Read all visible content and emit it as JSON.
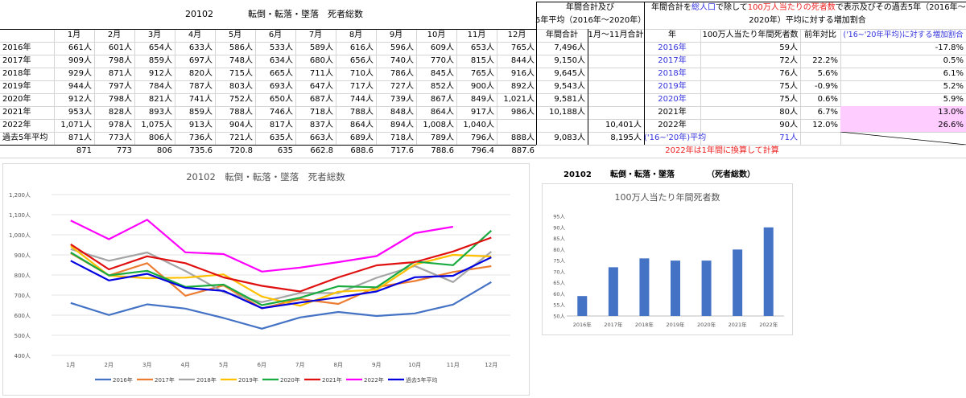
{
  "sheet": {
    "title_code": "20102",
    "title_name": "転倒・転落・墜落　死者総数",
    "note_annual_1": "年間合計及び",
    "note_annual_2": "5年平均（2016年～2020年）",
    "note_right_1a": "年間合計を",
    "note_right_1b": "総人口",
    "note_right_1c": "で除して",
    "note_right_1d": "100万人当たりの死者数",
    "note_right_1e": "で表示及びその過去5年（2016年～",
    "note_right_2": "2020年）平均に対する増加割合",
    "months": [
      "1月",
      "2月",
      "3月",
      "4月",
      "5月",
      "6月",
      "7月",
      "8月",
      "9月",
      "10月",
      "11月",
      "12月"
    ],
    "col_annual": "年間合計",
    "col_jan_nov": "1月～11月合計",
    "col_year": "年",
    "col_per_million": "100万人当たり年間死者数",
    "col_yoy": "前年対比",
    "col_increase": "('16~'20年平均)に対する増加割合",
    "rows": [
      {
        "label": "2016年",
        "m": [
          "661人",
          "601人",
          "654人",
          "633人",
          "586人",
          "533人",
          "589人",
          "616人",
          "596人",
          "609人",
          "653人",
          "765人"
        ],
        "annual": "7,496人",
        "jn": "",
        "year": "2016年",
        "pm": "59人",
        "yoy": "",
        "inc": "-17.8%"
      },
      {
        "label": "2017年",
        "m": [
          "909人",
          "798人",
          "859人",
          "697人",
          "748人",
          "634人",
          "680人",
          "656人",
          "740人",
          "770人",
          "815人",
          "844人"
        ],
        "annual": "9,150人",
        "jn": "",
        "year": "2017年",
        "pm": "72人",
        "yoy": "22.2%",
        "inc": "0.5%"
      },
      {
        "label": "2018年",
        "m": [
          "929人",
          "871人",
          "912人",
          "820人",
          "715人",
          "665人",
          "711人",
          "710人",
          "786人",
          "845人",
          "765人",
          "916人"
        ],
        "annual": "9,645人",
        "jn": "",
        "year": "2018年",
        "pm": "76人",
        "yoy": "5.6%",
        "inc": "6.1%"
      },
      {
        "label": "2019年",
        "m": [
          "944人",
          "797人",
          "784人",
          "787人",
          "803人",
          "693人",
          "647人",
          "717人",
          "727人",
          "852人",
          "900人",
          "892人"
        ],
        "annual": "9,543人",
        "jn": "",
        "year": "2019年",
        "pm": "75人",
        "yoy": "-0.9%",
        "inc": "5.2%"
      },
      {
        "label": "2020年",
        "m": [
          "912人",
          "798人",
          "821人",
          "741人",
          "752人",
          "650人",
          "687人",
          "744人",
          "739人",
          "867人",
          "849人",
          "1,021人"
        ],
        "annual": "9,581人",
        "jn": "",
        "year": "2020年",
        "pm": "75人",
        "yoy": "0.6%",
        "inc": "5.9%"
      },
      {
        "label": "2021年",
        "m": [
          "953人",
          "828人",
          "893人",
          "859人",
          "788人",
          "746人",
          "718人",
          "788人",
          "848人",
          "864人",
          "917人",
          "986人"
        ],
        "annual": "10,188人",
        "jn": "",
        "year": "2021年",
        "pm": "80人",
        "yoy": "6.7%",
        "inc": "13.0%"
      },
      {
        "label": "2022年",
        "m": [
          "1,071人",
          "978人",
          "1,075人",
          "913人",
          "904人",
          "817人",
          "837人",
          "864人",
          "894人",
          "1,008人",
          "1,040人",
          ""
        ],
        "annual": "",
        "jn": "10,401人",
        "year": "2022年",
        "pm": "90人",
        "yoy": "12.0%",
        "inc": "26.6%"
      },
      {
        "label": "過去5年平均",
        "m": [
          "871人",
          "773人",
          "806人",
          "736人",
          "721人",
          "635人",
          "663人",
          "689人",
          "718人",
          "789人",
          "796人",
          "888人"
        ],
        "annual": "9,083人",
        "jn": "8,195人",
        "year": "('16~'20年)平均",
        "pm": "71人",
        "yoy": "",
        "inc": ""
      }
    ],
    "avg_raw": [
      "871",
      "773",
      "806",
      "735.6",
      "720.8",
      "635",
      "662.8",
      "688.6",
      "717.6",
      "788.6",
      "796.4",
      "887.6"
    ],
    "note_2022": "2022年は1年間に換算して計算"
  },
  "colors": {
    "2016年": "#4472c4",
    "2017年": "#ed7d31",
    "2018年": "#a5a5a5",
    "2019年": "#ffc000",
    "2020年": "#1aab40",
    "2021年": "#e01010",
    "2022年": "#ff00ff",
    "過去5年平均": "#0000e0",
    "bar": "#4472c4"
  },
  "chart2_header": {
    "code": "20102",
    "name": "転倒・転落・墜落",
    "paren": "（死者総数）"
  },
  "chart_data": [
    {
      "type": "line",
      "title": "20102　転倒・転落・墜落　死者総数",
      "categories": [
        "1月",
        "2月",
        "3月",
        "4月",
        "5月",
        "6月",
        "7月",
        "8月",
        "9月",
        "10月",
        "11月",
        "12月"
      ],
      "ylim": [
        400,
        1200
      ],
      "yticks": [
        "400人",
        "500人",
        "600人",
        "700人",
        "800人",
        "900人",
        "1,000人",
        "1,100人",
        "1,200人"
      ],
      "grid": true,
      "legend": "bottom",
      "series": [
        {
          "name": "2016年",
          "values": [
            661,
            601,
            654,
            633,
            586,
            533,
            589,
            616,
            596,
            609,
            653,
            765
          ]
        },
        {
          "name": "2017年",
          "values": [
            909,
            798,
            859,
            697,
            748,
            634,
            680,
            656,
            740,
            770,
            815,
            844
          ]
        },
        {
          "name": "2018年",
          "values": [
            929,
            871,
            912,
            820,
            715,
            665,
            711,
            710,
            786,
            845,
            765,
            916
          ]
        },
        {
          "name": "2019年",
          "values": [
            944,
            797,
            784,
            787,
            803,
            693,
            647,
            717,
            727,
            852,
            900,
            892
          ]
        },
        {
          "name": "2020年",
          "values": [
            912,
            798,
            821,
            741,
            752,
            650,
            687,
            744,
            739,
            867,
            849,
            1021
          ]
        },
        {
          "name": "2021年",
          "values": [
            953,
            828,
            893,
            859,
            788,
            746,
            718,
            788,
            848,
            864,
            917,
            986
          ]
        },
        {
          "name": "2022年",
          "values": [
            1071,
            978,
            1075,
            913,
            904,
            817,
            837,
            864,
            894,
            1008,
            1040,
            null
          ]
        },
        {
          "name": "過去5年平均",
          "values": [
            871,
            773,
            806,
            736,
            721,
            635,
            663,
            689,
            718,
            789,
            796,
            888
          ]
        }
      ]
    },
    {
      "type": "bar",
      "title": "100万人当たり年間死者数",
      "categories": [
        "2016年",
        "2017年",
        "2018年",
        "2019年",
        "2020年",
        "2021年",
        "2022年"
      ],
      "values": [
        59,
        72,
        76,
        75,
        75,
        80,
        90
      ],
      "ylim": [
        50,
        95
      ],
      "yticks": [
        "50人",
        "55人",
        "60人",
        "65人",
        "70人",
        "75人",
        "80人",
        "85人",
        "90人",
        "95人"
      ],
      "grid": false,
      "legend": "none"
    }
  ]
}
